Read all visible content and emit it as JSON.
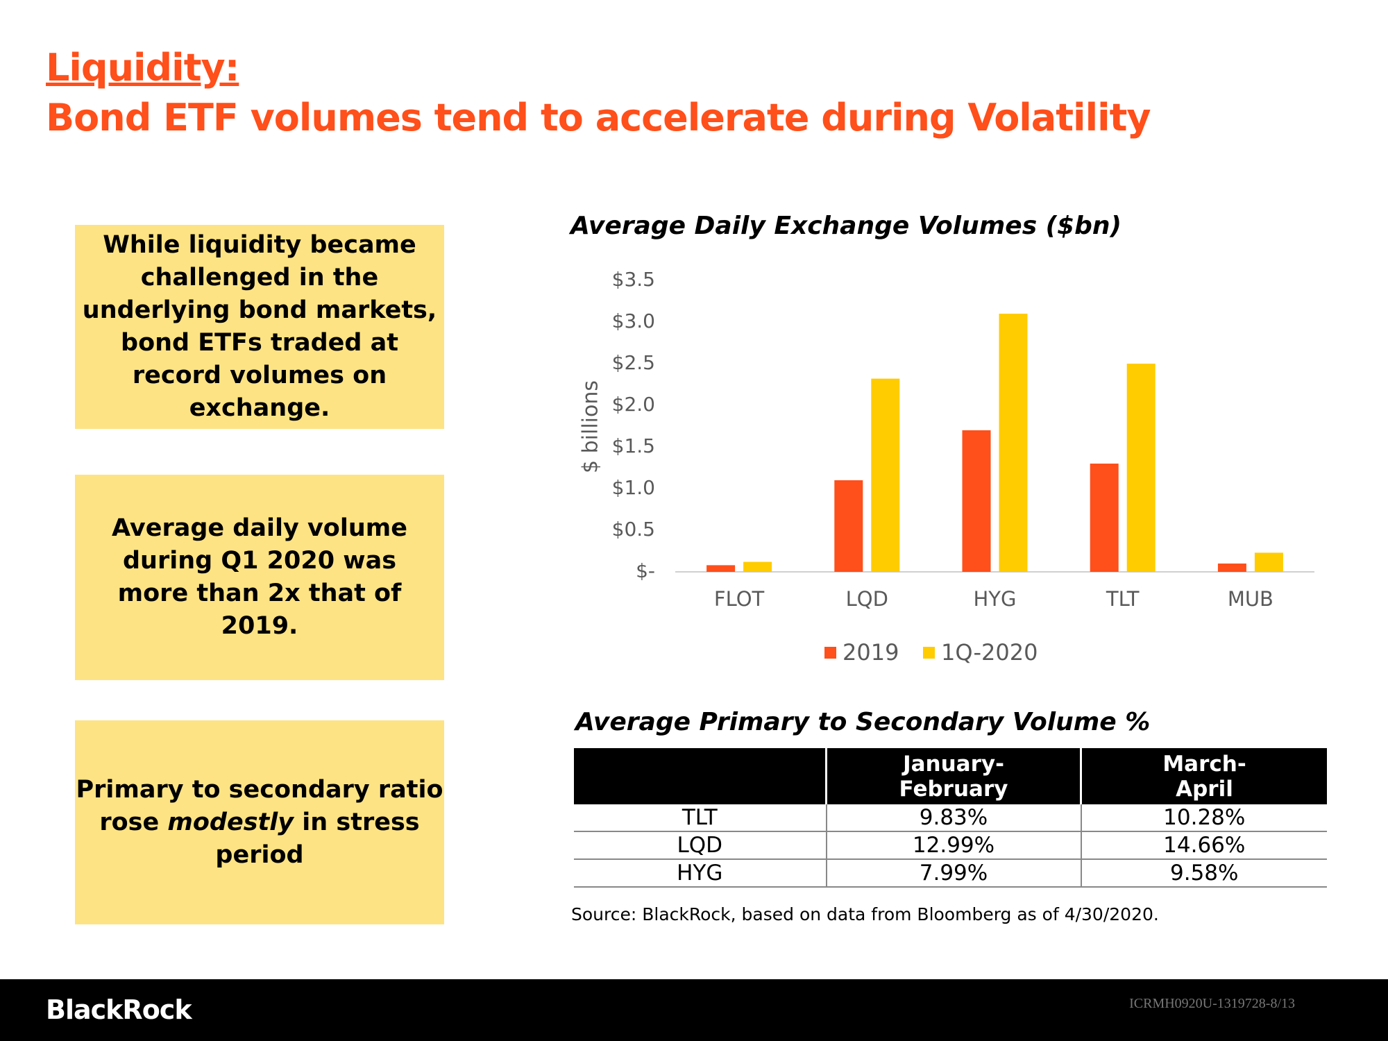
{
  "header": {
    "title_line1": "Liquidity:",
    "title_line2": "Bond ETF volumes tend to accelerate during Volatility"
  },
  "callouts": [
    {
      "text": "While liquidity became challenged in the underlying bond markets, bond ETFs traded at record volumes on exchange."
    },
    {
      "text": "Average daily volume during Q1 2020 was more than 2x that of 2019."
    },
    {
      "text_before": "Primary to secondary ratio rose ",
      "emphasis": "modestly",
      "text_after": " in stress period"
    }
  ],
  "chart_data": {
    "type": "bar",
    "title": "Average Daily Exchange Volumes ($bn)",
    "y_label": "$ billions",
    "categories": [
      "FLOT",
      "LQD",
      "HYG",
      "TLT",
      "MUB"
    ],
    "series": [
      {
        "name": "2019",
        "color": "#ff4f1a",
        "values": [
          0.08,
          1.1,
          1.7,
          1.3,
          0.1
        ]
      },
      {
        "name": "1Q-2020",
        "color": "#ffcc00",
        "values": [
          0.12,
          2.32,
          3.1,
          2.5,
          0.23
        ]
      }
    ],
    "ylim": [
      0,
      3.5
    ],
    "yticks": [
      {
        "value": 0,
        "label": "$-"
      },
      {
        "value": 0.5,
        "label": "$0.5"
      },
      {
        "value": 1,
        "label": "$1.0"
      },
      {
        "value": 1.5,
        "label": "$1.5"
      },
      {
        "value": 2,
        "label": "$2.0"
      },
      {
        "value": 2.5,
        "label": "$2.5"
      },
      {
        "value": 3,
        "label": "$3.0"
      },
      {
        "value": 3.5,
        "label": "$3.5"
      }
    ],
    "grid": false,
    "legend": "bottom"
  },
  "table": {
    "title": "Average Primary to Secondary Volume %",
    "columns": [
      "",
      "January-February",
      "March-April"
    ],
    "rows": [
      [
        "TLT",
        "9.83%",
        "10.28%"
      ],
      [
        "LQD",
        "12.99%",
        "14.66%"
      ],
      [
        "HYG",
        "7.99%",
        "9.58%"
      ]
    ]
  },
  "source": "Source:  BlackRock, based on data from Bloomberg as of 4/30/2020.",
  "footer": {
    "brand": "BlackRock",
    "code": "ICRMH0920U-1319728-8/13"
  }
}
